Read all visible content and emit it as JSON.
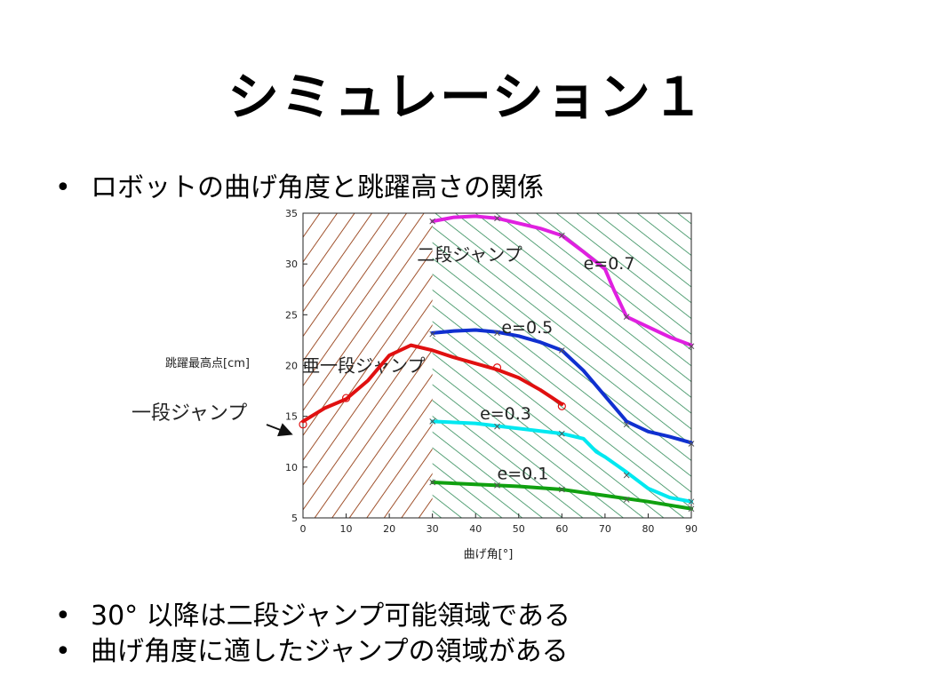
{
  "slide": {
    "title": "シミュレーション１",
    "bullets": [
      "ロボットの曲げ角度と跳躍高さの関係",
      "30° 以降は二段ジャンプ可能領域である",
      "曲げ角度に適したジャンプの領域がある"
    ],
    "bullet_marker": "•"
  },
  "chart_data": {
    "type": "line",
    "xlabel": "曲げ角[°]",
    "ylabel": "跳躍最高点[cm]",
    "xlim": [
      0,
      90
    ],
    "ylim": [
      5,
      35
    ],
    "xticks": [
      0,
      10,
      20,
      30,
      40,
      50,
      60,
      70,
      80,
      90
    ],
    "yticks": [
      5,
      10,
      15,
      20,
      25,
      30,
      35
    ],
    "regions": [
      {
        "name": "亜一段ジャンプ",
        "x_range": [
          0,
          30
        ],
        "color": "#a0522d"
      },
      {
        "name": "二段ジャンプ",
        "x_range": [
          30,
          90
        ],
        "color": "#2e8b57"
      }
    ],
    "external_label": "一段ジャンプ",
    "series": [
      {
        "name": "一段ジャンプ",
        "color": "#e01010",
        "marker": "o",
        "x": [
          0,
          5,
          10,
          15,
          20,
          25,
          30,
          35,
          40,
          45,
          50,
          55,
          60
        ],
        "y": [
          14.5,
          15.8,
          16.7,
          18.5,
          21.0,
          22.0,
          21.5,
          20.8,
          20.2,
          19.6,
          18.8,
          17.6,
          16.2
        ],
        "marker_x": [
          0,
          10,
          45,
          60
        ],
        "marker_y": [
          14.2,
          16.8,
          19.8,
          16.0
        ]
      },
      {
        "name": "e=0.1",
        "color": "#10a010",
        "marker": "x",
        "x": [
          30,
          40,
          50,
          60,
          70,
          80,
          90
        ],
        "y": [
          8.5,
          8.3,
          8.1,
          7.8,
          7.2,
          6.6,
          5.9
        ],
        "marker_x": [
          30,
          45,
          60,
          75,
          90
        ],
        "marker_y": [
          8.5,
          8.2,
          7.8,
          6.8,
          5.9
        ]
      },
      {
        "name": "e=0.3",
        "color": "#00e8f0",
        "marker": "x",
        "x": [
          30,
          40,
          50,
          60,
          65,
          68,
          70,
          75,
          80,
          85,
          90
        ],
        "y": [
          14.5,
          14.3,
          13.8,
          13.3,
          12.8,
          11.5,
          11.0,
          9.5,
          7.9,
          7.0,
          6.6
        ],
        "marker_x": [
          30,
          45,
          60,
          75,
          90
        ],
        "marker_y": [
          14.5,
          14.0,
          13.3,
          9.2,
          6.6
        ]
      },
      {
        "name": "e=0.5",
        "color": "#1030d0",
        "marker": "x",
        "x": [
          30,
          35,
          40,
          45,
          50,
          55,
          60,
          65,
          70,
          75,
          80,
          85,
          90
        ],
        "y": [
          23.2,
          23.4,
          23.5,
          23.3,
          22.9,
          22.3,
          21.5,
          19.5,
          17.0,
          14.5,
          13.5,
          13.0,
          12.4
        ],
        "marker_x": [
          30,
          45,
          60,
          75,
          90
        ],
        "marker_y": [
          23.1,
          23.2,
          21.5,
          14.2,
          12.3
        ]
      },
      {
        "name": "e=0.7",
        "color": "#e020e0",
        "marker": "x",
        "x": [
          30,
          35,
          40,
          45,
          50,
          55,
          60,
          65,
          70,
          72,
          75,
          80,
          85,
          90
        ],
        "y": [
          34.2,
          34.6,
          34.7,
          34.5,
          34.0,
          33.5,
          32.8,
          31.2,
          29.5,
          27.5,
          24.8,
          23.8,
          22.8,
          22.0
        ],
        "marker_x": [
          30,
          45,
          60,
          75,
          90
        ],
        "marker_y": [
          34.2,
          34.5,
          32.8,
          24.8,
          21.9
        ]
      }
    ],
    "series_labels": [
      {
        "text": "e=0.7",
        "x": 65,
        "y": 29.5
      },
      {
        "text": "e=0.5",
        "x": 46,
        "y": 23.2
      },
      {
        "text": "e=0.3",
        "x": 41,
        "y": 14.7
      },
      {
        "text": "e=0.1",
        "x": 45,
        "y": 8.8
      }
    ]
  }
}
